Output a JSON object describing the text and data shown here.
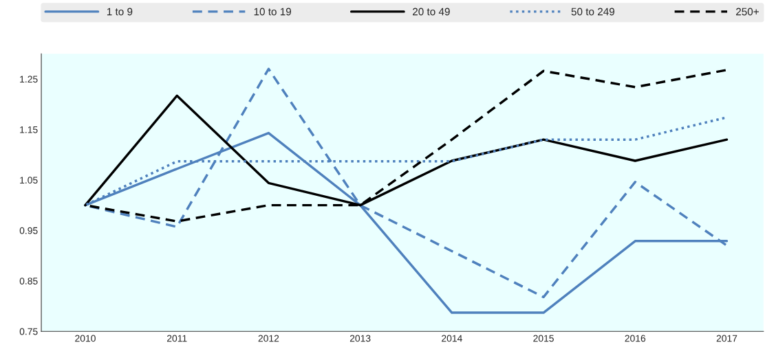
{
  "chart_data": {
    "type": "line",
    "categories": [
      "2010",
      "2011",
      "2012",
      "2013",
      "2014",
      "2015",
      "2016",
      "2017"
    ],
    "series": [
      {
        "name": "1 to 9",
        "color": "#4f81bd",
        "line_style": "solid",
        "values": [
          1.0,
          1.072,
          1.143,
          1.0,
          0.787,
          0.787,
          0.929,
          0.929
        ]
      },
      {
        "name": "10 to 19",
        "color": "#4f81bd",
        "line_style": "dashed",
        "values": [
          1.0,
          0.957,
          1.27,
          1.0,
          0.909,
          0.818,
          1.046,
          0.92
        ]
      },
      {
        "name": "20 to 49",
        "color": "#000000",
        "line_style": "solid",
        "values": [
          1.0,
          1.217,
          1.044,
          1.0,
          1.088,
          1.13,
          1.088,
          1.13
        ]
      },
      {
        "name": "50 to 249",
        "color": "#4f81bd",
        "line_style": "dotted",
        "values": [
          1.0,
          1.087,
          1.087,
          1.087,
          1.087,
          1.13,
          1.13,
          1.174
        ]
      },
      {
        "name": "250+",
        "color": "#000000",
        "line_style": "dashed",
        "values": [
          1.0,
          0.968,
          1.0,
          1.0,
          1.13,
          1.266,
          1.234,
          1.268
        ]
      }
    ],
    "ylim": [
      0.75,
      1.3
    ],
    "yticks": [
      0.75,
      0.85,
      0.95,
      1.05,
      1.15,
      1.25
    ],
    "grid": false,
    "legend": "top",
    "marker": "none"
  }
}
